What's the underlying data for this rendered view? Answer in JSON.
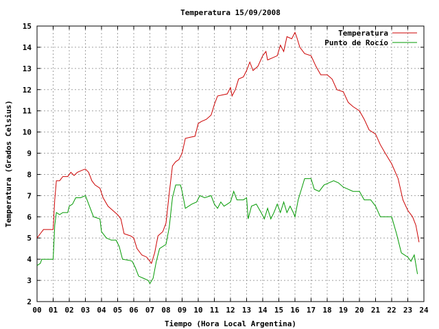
{
  "chart_data": {
    "type": "line",
    "title": "Temperatura 15/09/2008",
    "xlabel": "Tiempo (Hora Local Argentina)",
    "ylabel": "Temperatura (Grados Celsius)",
    "xlim": [
      0,
      24
    ],
    "ylim": [
      2,
      15
    ],
    "x_ticks": [
      "00",
      "01",
      "02",
      "03",
      "04",
      "05",
      "06",
      "07",
      "08",
      "09",
      "10",
      "11",
      "12",
      "13",
      "14",
      "15",
      "16",
      "17",
      "18",
      "19",
      "20",
      "21",
      "22",
      "23",
      "24"
    ],
    "y_ticks": [
      "2",
      "3",
      "4",
      "5",
      "6",
      "7",
      "8",
      "9",
      "10",
      "11",
      "12",
      "13",
      "14",
      "15"
    ],
    "grid": true,
    "legend_position": "top-right",
    "series": [
      {
        "name": "Temperatura",
        "color": "#cc0000",
        "points": [
          [
            0.0,
            5.0
          ],
          [
            0.2,
            5.2
          ],
          [
            0.4,
            5.4
          ],
          [
            0.7,
            5.4
          ],
          [
            1.0,
            5.4
          ],
          [
            1.1,
            6.8
          ],
          [
            1.2,
            7.7
          ],
          [
            1.4,
            7.7
          ],
          [
            1.6,
            7.9
          ],
          [
            1.9,
            7.9
          ],
          [
            2.1,
            8.1
          ],
          [
            2.3,
            7.95
          ],
          [
            2.5,
            8.1
          ],
          [
            2.8,
            8.2
          ],
          [
            3.0,
            8.25
          ],
          [
            3.2,
            8.1
          ],
          [
            3.4,
            7.7
          ],
          [
            3.6,
            7.5
          ],
          [
            3.9,
            7.35
          ],
          [
            4.1,
            6.9
          ],
          [
            4.4,
            6.5
          ],
          [
            4.7,
            6.3
          ],
          [
            5.0,
            6.1
          ],
          [
            5.2,
            5.9
          ],
          [
            5.4,
            5.2
          ],
          [
            5.8,
            5.1
          ],
          [
            6.0,
            5.0
          ],
          [
            6.2,
            4.5
          ],
          [
            6.5,
            4.2
          ],
          [
            6.8,
            4.1
          ],
          [
            7.0,
            3.9
          ],
          [
            7.1,
            3.8
          ],
          [
            7.3,
            4.3
          ],
          [
            7.5,
            5.1
          ],
          [
            7.8,
            5.3
          ],
          [
            8.0,
            5.7
          ],
          [
            8.2,
            7.1
          ],
          [
            8.4,
            8.4
          ],
          [
            8.6,
            8.6
          ],
          [
            8.8,
            8.7
          ],
          [
            9.0,
            9.0
          ],
          [
            9.2,
            9.7
          ],
          [
            9.5,
            9.75
          ],
          [
            9.8,
            9.8
          ],
          [
            10.0,
            10.4
          ],
          [
            10.2,
            10.5
          ],
          [
            10.5,
            10.6
          ],
          [
            10.8,
            10.8
          ],
          [
            11.0,
            11.3
          ],
          [
            11.2,
            11.7
          ],
          [
            11.5,
            11.75
          ],
          [
            11.8,
            11.8
          ],
          [
            12.0,
            12.1
          ],
          [
            12.1,
            11.7
          ],
          [
            12.3,
            12.0
          ],
          [
            12.5,
            12.5
          ],
          [
            12.8,
            12.6
          ],
          [
            13.0,
            12.9
          ],
          [
            13.2,
            13.3
          ],
          [
            13.4,
            12.9
          ],
          [
            13.7,
            13.1
          ],
          [
            14.0,
            13.6
          ],
          [
            14.2,
            13.8
          ],
          [
            14.3,
            13.4
          ],
          [
            14.6,
            13.5
          ],
          [
            14.9,
            13.6
          ],
          [
            15.1,
            14.1
          ],
          [
            15.3,
            13.8
          ],
          [
            15.5,
            14.5
          ],
          [
            15.8,
            14.4
          ],
          [
            16.0,
            14.7
          ],
          [
            16.1,
            14.5
          ],
          [
            16.3,
            14.0
          ],
          [
            16.6,
            13.7
          ],
          [
            17.0,
            13.6
          ],
          [
            17.3,
            13.1
          ],
          [
            17.6,
            12.7
          ],
          [
            18.0,
            12.7
          ],
          [
            18.3,
            12.5
          ],
          [
            18.6,
            12.0
          ],
          [
            19.0,
            11.9
          ],
          [
            19.3,
            11.4
          ],
          [
            19.6,
            11.2
          ],
          [
            20.0,
            11.0
          ],
          [
            20.3,
            10.6
          ],
          [
            20.6,
            10.1
          ],
          [
            21.0,
            9.9
          ],
          [
            21.3,
            9.4
          ],
          [
            21.6,
            9.0
          ],
          [
            22.0,
            8.5
          ],
          [
            22.4,
            7.8
          ],
          [
            22.7,
            6.8
          ],
          [
            23.0,
            6.3
          ],
          [
            23.3,
            6.0
          ],
          [
            23.5,
            5.6
          ],
          [
            23.7,
            4.8
          ]
        ]
      },
      {
        "name": "Punto de Rocío",
        "color": "#009900",
        "points": [
          [
            0.0,
            3.7
          ],
          [
            0.2,
            3.8
          ],
          [
            0.3,
            4.0
          ],
          [
            0.7,
            4.0
          ],
          [
            1.0,
            4.0
          ],
          [
            1.1,
            5.6
          ],
          [
            1.2,
            6.2
          ],
          [
            1.4,
            6.1
          ],
          [
            1.6,
            6.2
          ],
          [
            1.9,
            6.2
          ],
          [
            2.0,
            6.5
          ],
          [
            2.2,
            6.6
          ],
          [
            2.4,
            6.9
          ],
          [
            2.7,
            6.9
          ],
          [
            3.0,
            7.0
          ],
          [
            3.1,
            6.8
          ],
          [
            3.3,
            6.4
          ],
          [
            3.5,
            6.0
          ],
          [
            3.9,
            5.9
          ],
          [
            4.0,
            5.3
          ],
          [
            4.3,
            5.0
          ],
          [
            4.6,
            4.9
          ],
          [
            4.9,
            4.9
          ],
          [
            5.1,
            4.6
          ],
          [
            5.3,
            4.0
          ],
          [
            5.7,
            3.95
          ],
          [
            5.9,
            3.9
          ],
          [
            6.1,
            3.6
          ],
          [
            6.3,
            3.2
          ],
          [
            6.6,
            3.1
          ],
          [
            6.9,
            3.0
          ],
          [
            7.0,
            2.85
          ],
          [
            7.2,
            3.1
          ],
          [
            7.4,
            3.9
          ],
          [
            7.6,
            4.5
          ],
          [
            8.0,
            4.7
          ],
          [
            8.2,
            5.5
          ],
          [
            8.4,
            6.9
          ],
          [
            8.6,
            7.5
          ],
          [
            8.9,
            7.5
          ],
          [
            9.0,
            7.2
          ],
          [
            9.2,
            6.4
          ],
          [
            9.6,
            6.6
          ],
          [
            9.9,
            6.7
          ],
          [
            10.1,
            7.0
          ],
          [
            10.4,
            6.9
          ],
          [
            10.8,
            7.0
          ],
          [
            11.0,
            6.6
          ],
          [
            11.2,
            6.4
          ],
          [
            11.4,
            6.7
          ],
          [
            11.6,
            6.5
          ],
          [
            11.8,
            6.6
          ],
          [
            12.0,
            6.7
          ],
          [
            12.2,
            7.2
          ],
          [
            12.4,
            6.8
          ],
          [
            12.8,
            6.8
          ],
          [
            13.0,
            6.9
          ],
          [
            13.1,
            5.9
          ],
          [
            13.3,
            6.5
          ],
          [
            13.6,
            6.6
          ],
          [
            13.9,
            6.2
          ],
          [
            14.1,
            5.9
          ],
          [
            14.3,
            6.4
          ],
          [
            14.5,
            5.9
          ],
          [
            14.7,
            6.2
          ],
          [
            14.9,
            6.6
          ],
          [
            15.1,
            6.2
          ],
          [
            15.3,
            6.7
          ],
          [
            15.5,
            6.2
          ],
          [
            15.7,
            6.5
          ],
          [
            15.9,
            6.2
          ],
          [
            16.0,
            6.0
          ],
          [
            16.2,
            6.8
          ],
          [
            16.4,
            7.3
          ],
          [
            16.6,
            7.8
          ],
          [
            17.0,
            7.8
          ],
          [
            17.2,
            7.3
          ],
          [
            17.5,
            7.2
          ],
          [
            17.8,
            7.5
          ],
          [
            18.1,
            7.6
          ],
          [
            18.4,
            7.7
          ],
          [
            18.7,
            7.6
          ],
          [
            19.0,
            7.4
          ],
          [
            19.3,
            7.3
          ],
          [
            19.6,
            7.2
          ],
          [
            20.0,
            7.2
          ],
          [
            20.3,
            6.8
          ],
          [
            20.7,
            6.8
          ],
          [
            21.0,
            6.5
          ],
          [
            21.3,
            6.0
          ],
          [
            21.6,
            6.0
          ],
          [
            22.0,
            6.0
          ],
          [
            22.3,
            5.2
          ],
          [
            22.6,
            4.3
          ],
          [
            23.0,
            4.1
          ],
          [
            23.2,
            3.9
          ],
          [
            23.4,
            4.2
          ],
          [
            23.6,
            3.3
          ]
        ]
      }
    ]
  }
}
